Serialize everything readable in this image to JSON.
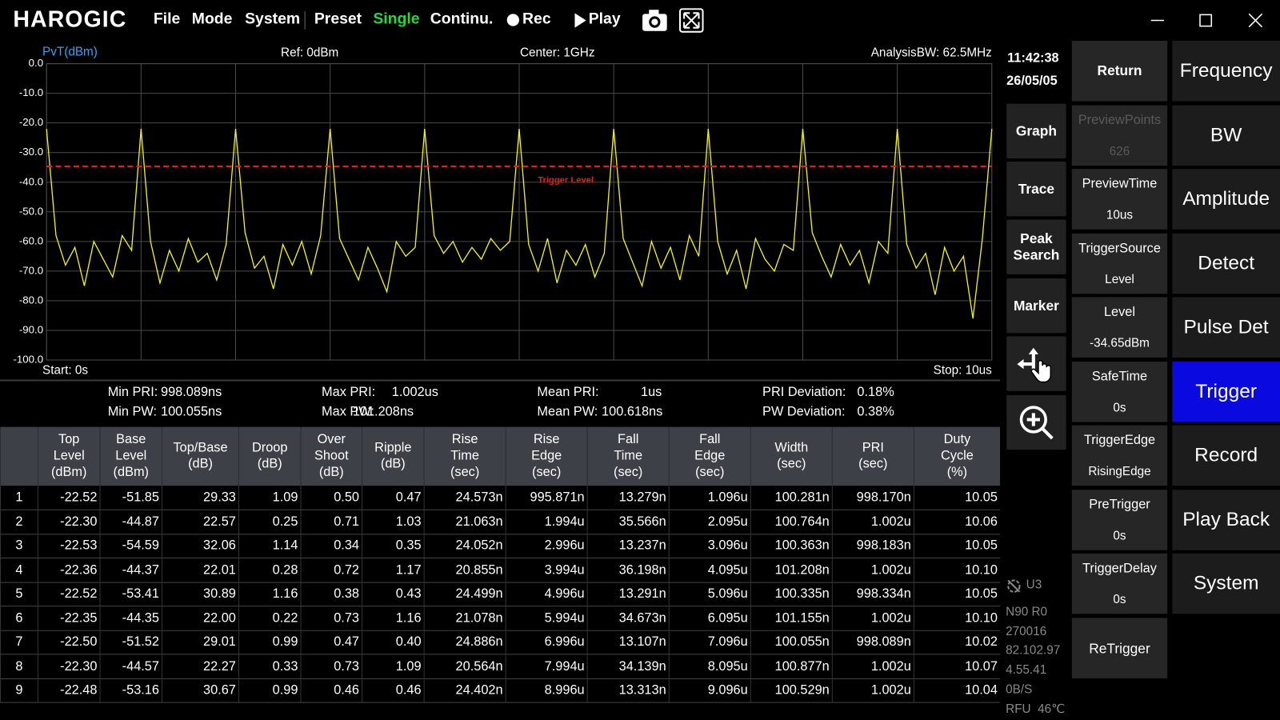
{
  "title_bar": {
    "logo": "HAROGIC",
    "menu": [
      "File",
      "Mode",
      "System",
      "Preset",
      "Single",
      "Continu.",
      "Rec",
      "Play"
    ]
  },
  "chart_data": {
    "type": "line",
    "title": "PvT(dBm)",
    "header": [
      "Ref: 0dBm",
      "Center: 1GHz",
      "AnalysisBW: 62.5MHz"
    ],
    "start_label": "Start: 0s",
    "stop_label": "Stop: 10us",
    "xlim": [
      0,
      10
    ],
    "ylim": [
      -100,
      0
    ],
    "yticks": [
      {
        "value": 0,
        "label": "0.0"
      },
      {
        "value": -10,
        "label": "-10.0"
      },
      {
        "value": -20,
        "label": "-20.0"
      },
      {
        "value": -30,
        "label": "-30.0"
      },
      {
        "value": -40,
        "label": "-40.0"
      },
      {
        "value": -50,
        "label": "-50.0"
      },
      {
        "value": -60,
        "label": "-60.0"
      },
      {
        "value": -70,
        "label": "-70.0"
      },
      {
        "value": -80,
        "label": "-80.0"
      },
      {
        "value": -90,
        "label": "-90.0"
      },
      {
        "value": -100,
        "label": "-100.0"
      }
    ],
    "grid": true,
    "x": [
      0,
      0.1,
      0.2,
      0.3,
      0.4,
      0.5,
      0.6,
      0.7,
      0.8,
      0.9,
      1,
      1.1,
      1.2,
      1.3,
      1.4,
      1.5,
      1.6,
      1.7,
      1.8,
      1.9,
      2,
      2.1,
      2.2,
      2.3,
      2.4,
      2.5,
      2.6,
      2.7,
      2.8,
      2.9,
      3,
      3.1,
      3.2,
      3.3,
      3.4,
      3.5,
      3.6,
      3.7,
      3.8,
      3.9,
      4,
      4.1,
      4.2,
      4.3,
      4.4,
      4.5,
      4.6,
      4.7,
      4.8,
      4.9,
      5,
      5.1,
      5.2,
      5.3,
      5.4,
      5.5,
      5.6,
      5.7,
      5.8,
      5.9,
      6,
      6.1,
      6.2,
      6.3,
      6.4,
      6.5,
      6.6,
      6.7,
      6.8,
      6.9,
      7,
      7.1,
      7.2,
      7.3,
      7.4,
      7.5,
      7.6,
      7.7,
      7.8,
      7.9,
      8,
      8.1,
      8.2,
      8.3,
      8.4,
      8.5,
      8.6,
      8.7,
      8.8,
      8.9,
      9,
      9.1,
      9.2,
      9.3,
      9.4,
      9.5,
      9.6,
      9.7,
      9.8,
      9.9,
      10
    ],
    "series": [
      {
        "color": "#f2ef2a",
        "values": [
          -22,
          -58,
          -68,
          -62,
          -75,
          -60,
          -66,
          -72,
          -58,
          -63,
          -22,
          -60,
          -74,
          -63,
          -70,
          -59,
          -67,
          -64,
          -73,
          -61,
          -22,
          -57,
          -69,
          -65,
          -76,
          -61,
          -68,
          -60,
          -71,
          -58,
          -22,
          -59,
          -66,
          -73,
          -62,
          -69,
          -77,
          -60,
          -65,
          -62,
          -22,
          -58,
          -64,
          -60,
          -67,
          -62,
          -66,
          -59,
          -63,
          -60,
          -22,
          -61,
          -70,
          -59,
          -74,
          -63,
          -68,
          -61,
          -72,
          -64,
          -22,
          -59,
          -67,
          -75,
          -60,
          -69,
          -62,
          -73,
          -58,
          -65,
          -22,
          -60,
          -71,
          -63,
          -76,
          -59,
          -66,
          -70,
          -61,
          -63,
          -22,
          -57,
          -65,
          -72,
          -61,
          -68,
          -63,
          -74,
          -60,
          -64,
          -22,
          -61,
          -69,
          -64,
          -78,
          -62,
          -70,
          -65,
          -86,
          -59,
          -22
        ]
      }
    ],
    "reference_lines": [
      {
        "label": "Trigger Level",
        "value": -34.65,
        "color": "#e02020"
      }
    ]
  },
  "stats": [
    {
      "label": "Min PRI:",
      "value": "998.089ns"
    },
    {
      "label": "Max PRI:",
      "value": "1.002us"
    },
    {
      "label": "Mean PRI:",
      "value": "1us"
    },
    {
      "label": "PRI Deviation:",
      "value": "0.18%"
    },
    {
      "label": "Min PW:",
      "value": "100.055ns"
    },
    {
      "label": "Max PW:",
      "value": "101.208ns"
    },
    {
      "label": "Mean PW:",
      "value": "100.618ns"
    },
    {
      "label": "PW Deviation:",
      "value": "0.38%"
    }
  ],
  "table": {
    "headers": [
      "",
      "Top\nLevel\n(dBm)",
      "Base\nLevel\n(dBm)",
      "Top/Base\n(dB)",
      "Droop\n(dB)",
      "Over\nShoot\n(dB)",
      "Ripple\n(dB)",
      "Rise\nTime\n(sec)",
      "Rise\nEdge\n(sec)",
      "Fall\nTime\n(sec)",
      "Fall\nEdge\n(sec)",
      "Width\n(sec)",
      "PRI\n(sec)",
      "Duty\nCycle\n(%)"
    ],
    "rows": [
      [
        "1",
        "-22.52",
        "-51.85",
        "29.33",
        "1.09",
        "0.50",
        "0.47",
        "24.573n",
        "995.871n",
        "13.279n",
        "1.096u",
        "100.281n",
        "998.170n",
        "10.05"
      ],
      [
        "2",
        "-22.30",
        "-44.87",
        "22.57",
        "0.25",
        "0.71",
        "1.03",
        "21.063n",
        "1.994u",
        "35.566n",
        "2.095u",
        "100.764n",
        "1.002u",
        "10.06"
      ],
      [
        "3",
        "-22.53",
        "-54.59",
        "32.06",
        "1.14",
        "0.34",
        "0.35",
        "24.052n",
        "2.996u",
        "13.237n",
        "3.096u",
        "100.363n",
        "998.183n",
        "10.05"
      ],
      [
        "4",
        "-22.36",
        "-44.37",
        "22.01",
        "0.28",
        "0.72",
        "1.17",
        "20.855n",
        "3.994u",
        "36.198n",
        "4.095u",
        "101.208n",
        "1.002u",
        "10.10"
      ],
      [
        "5",
        "-22.52",
        "-53.41",
        "30.89",
        "1.16",
        "0.38",
        "0.43",
        "24.499n",
        "4.996u",
        "13.291n",
        "5.096u",
        "100.335n",
        "998.334n",
        "10.05"
      ],
      [
        "6",
        "-22.35",
        "-44.35",
        "22.00",
        "0.22",
        "0.73",
        "1.16",
        "21.078n",
        "5.994u",
        "34.673n",
        "6.095u",
        "101.155n",
        "1.002u",
        "10.10"
      ],
      [
        "7",
        "-22.50",
        "-51.52",
        "29.01",
        "0.99",
        "0.47",
        "0.40",
        "24.886n",
        "6.996u",
        "13.107n",
        "7.096u",
        "100.055n",
        "998.089n",
        "10.02"
      ],
      [
        "8",
        "-22.30",
        "-44.57",
        "22.27",
        "0.33",
        "0.73",
        "1.09",
        "20.564n",
        "7.994u",
        "34.139n",
        "8.095u",
        "100.877n",
        "1.002u",
        "10.07"
      ],
      [
        "9",
        "-22.48",
        "-53.16",
        "30.67",
        "0.99",
        "0.46",
        "0.46",
        "24.402n",
        "8.996u",
        "13.313n",
        "9.096u",
        "100.529n",
        "1.002u",
        "10.04"
      ]
    ]
  },
  "sidebar": {
    "time": "11:42:38",
    "date": "26/05/05",
    "buttons": [
      "Graph",
      "Trace",
      "Peak\nSearch",
      "Marker"
    ],
    "status": [
      "U3",
      "N90 R0",
      "270016",
      "82.102.97",
      "4.55.41",
      "0B/S",
      "RFU  46℃"
    ]
  },
  "softkeys": [
    {
      "label": "Return"
    },
    {
      "label": "PreviewPoints",
      "value": "626",
      "enabled": false
    },
    {
      "label": "PreviewTime",
      "value": "10us"
    },
    {
      "label": "TriggerSource",
      "value": "Level"
    },
    {
      "label": "Level",
      "value": "-34.65dBm"
    },
    {
      "label": "SafeTime",
      "value": "0s"
    },
    {
      "label": "TriggerEdge",
      "value": "RisingEdge"
    },
    {
      "label": "PreTrigger",
      "value": "0s"
    },
    {
      "label": "TriggerDelay",
      "value": "0s"
    },
    {
      "label": "ReTrigger"
    }
  ],
  "menu_keys": {
    "items": [
      "Frequency",
      "BW",
      "Amplitude",
      "Detect",
      "Pulse Det",
      "Trigger",
      "Record",
      "Play Back",
      "System"
    ],
    "selected": 5
  }
}
